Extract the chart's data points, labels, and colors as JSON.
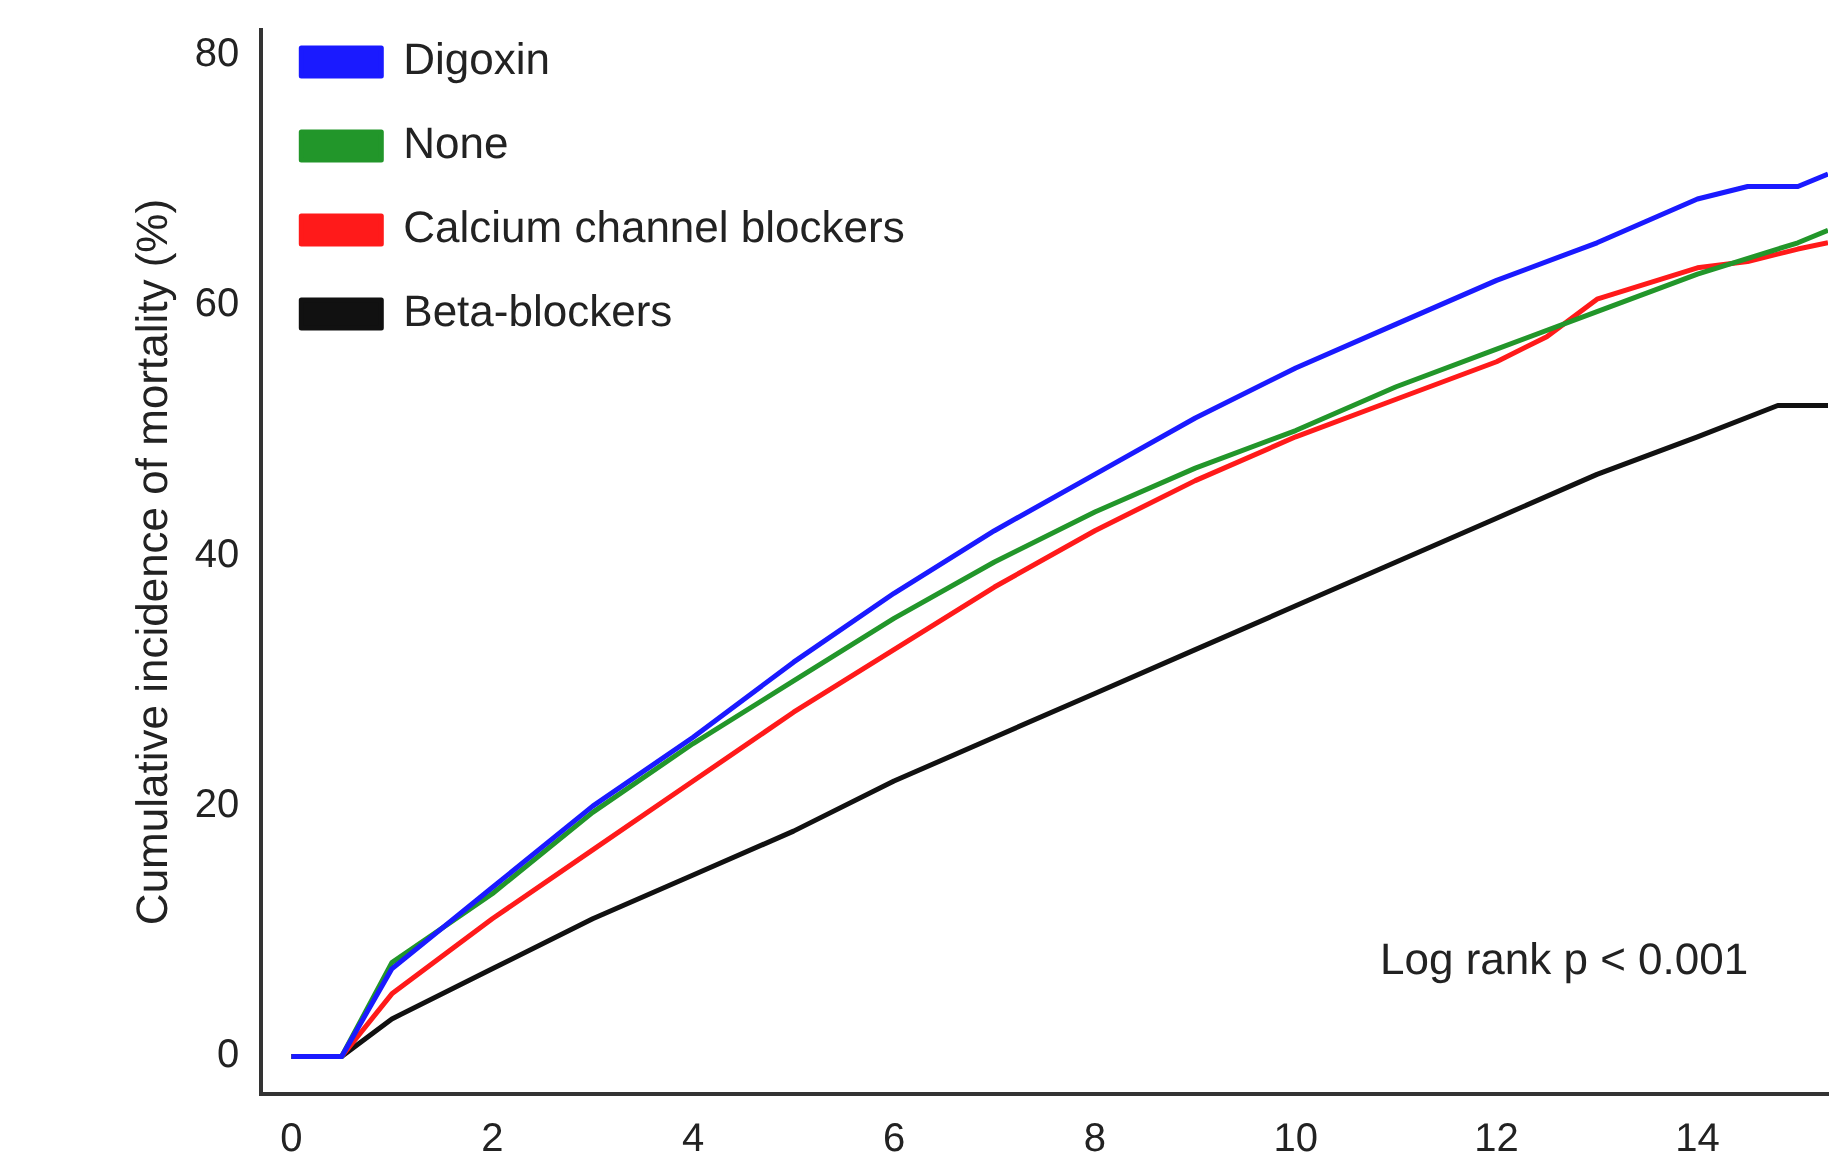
{
  "chart_data": {
    "type": "line",
    "ylabel": "Cumulative incidence of mortality (%)",
    "xlim": [
      -0.3,
      15.3
    ],
    "xticks": [
      0,
      2,
      4,
      6,
      8,
      10,
      12,
      14
    ],
    "ylim": [
      -3,
      82
    ],
    "yticks": [
      0,
      20,
      40,
      60,
      80
    ],
    "grid": false,
    "legend": "top left",
    "marker": "none",
    "line_style": "solid",
    "annotations": [
      "Log rank p < 0.001"
    ],
    "series": [
      {
        "name": "Digoxin",
        "color": "#1a1aff",
        "x": [
          0,
          0.5,
          1,
          2,
          3,
          4,
          5,
          6,
          7,
          8,
          9,
          10,
          11,
          12,
          13,
          14,
          14.5,
          15,
          15.3
        ],
        "values": [
          0,
          0,
          7,
          13.5,
          20,
          25.5,
          31.5,
          37,
          42,
          46.5,
          51,
          55,
          58.5,
          62,
          65,
          68.5,
          69.5,
          69.5,
          70.5
        ]
      },
      {
        "name": "None",
        "color": "#22962a",
        "x": [
          0,
          0.5,
          1,
          2,
          3,
          4,
          5,
          6,
          7,
          8,
          9,
          10,
          11,
          12,
          13,
          14,
          15,
          15.3
        ],
        "values": [
          0,
          0,
          7.5,
          13,
          19.5,
          25,
          30,
          35,
          39.5,
          43.5,
          47,
          50,
          53.5,
          56.5,
          59.5,
          62.5,
          65,
          66
        ]
      },
      {
        "name": "Calcium channel blockers",
        "color": "#ff1a1a",
        "x": [
          0,
          0.5,
          1,
          2,
          3,
          4,
          5,
          6,
          7,
          8,
          9,
          10,
          11,
          12,
          12.5,
          13,
          14,
          14.5,
          15,
          15.3
        ],
        "values": [
          0,
          0,
          5,
          11,
          16.5,
          22,
          27.5,
          32.5,
          37.5,
          42,
          46,
          49.5,
          52.5,
          55.5,
          57.5,
          60.5,
          63,
          63.5,
          64.5,
          65
        ]
      },
      {
        "name": "Beta-blockers",
        "color": "#111111",
        "x": [
          0,
          0.5,
          1,
          2,
          3,
          4,
          5,
          6,
          7,
          8,
          9,
          10,
          11,
          12,
          13,
          14,
          14.8,
          15.3
        ],
        "values": [
          0,
          0,
          3,
          7,
          11,
          14.5,
          18,
          22,
          25.5,
          29,
          32.5,
          36,
          39.5,
          43,
          46.5,
          49.5,
          52,
          52
        ]
      }
    ]
  }
}
